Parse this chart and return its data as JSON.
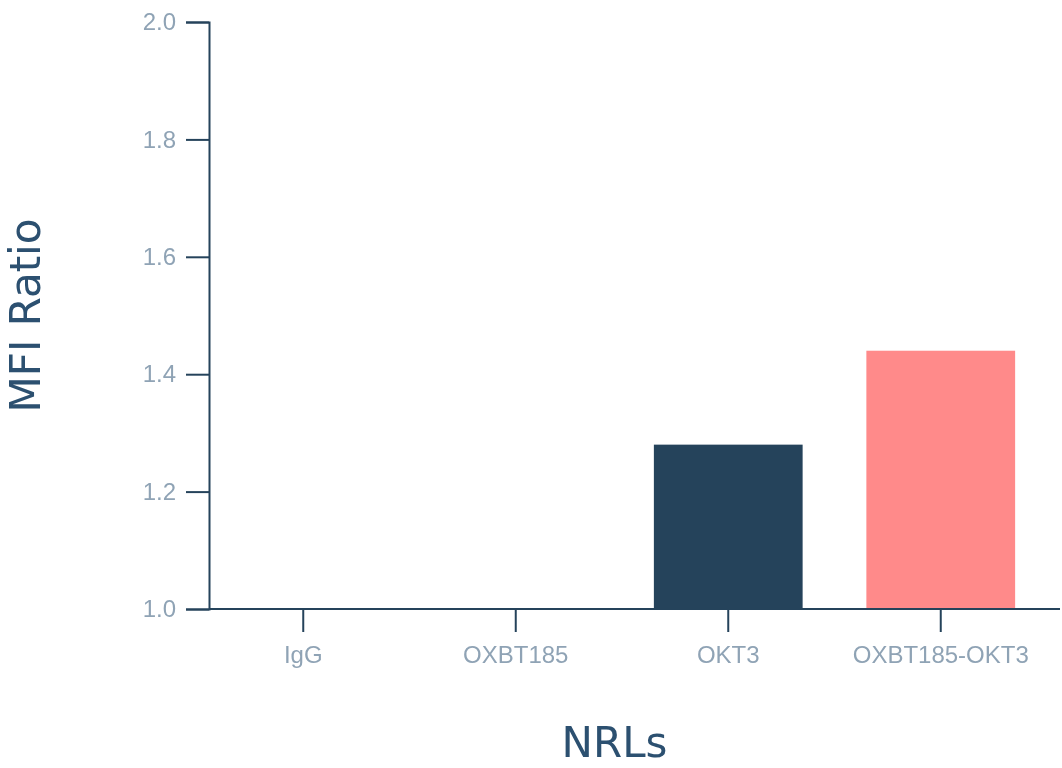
{
  "chart_data": {
    "type": "bar",
    "xlabel": "NRLs",
    "ylabel": "MFI Ratio",
    "categories": [
      "IgG",
      "OXBT185",
      "OKT3",
      "OXBT185-OKT3"
    ],
    "values": [
      1.0,
      1.0,
      1.28,
      1.44
    ],
    "colors": [
      "#25435b",
      "#25435b",
      "#25435b",
      "#ff8a8a"
    ],
    "ylim": [
      1.0,
      2.0
    ],
    "yticks": [
      {
        "value": 1.0,
        "label": "1.0"
      },
      {
        "value": 1.2,
        "label": "1.2"
      },
      {
        "value": 1.4,
        "label": "1.4"
      },
      {
        "value": 1.6,
        "label": "1.6"
      },
      {
        "value": 1.8,
        "label": "1.8"
      },
      {
        "value": 2.0,
        "label": "2.0"
      }
    ],
    "grid": false
  }
}
